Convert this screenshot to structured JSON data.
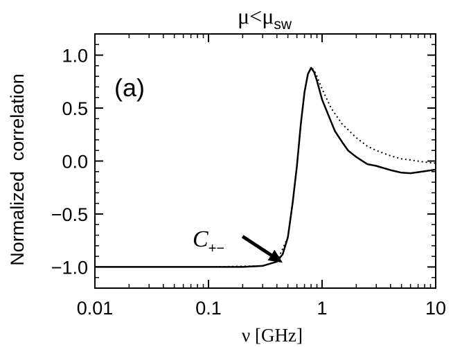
{
  "chart_data": {
    "type": "line",
    "title": {
      "main": "μ<μ",
      "sub": "sw"
    },
    "xlabel": "ν [GHz]",
    "ylabel": "Normalized  correlation",
    "xscale": "log",
    "xlim": [
      0.01,
      10
    ],
    "ylim": [
      -1.2,
      1.2
    ],
    "xticks": [
      {
        "value": 0.01,
        "label": "0.01"
      },
      {
        "value": 0.1,
        "label": "0.1"
      },
      {
        "value": 1,
        "label": "1"
      },
      {
        "value": 10,
        "label": "10"
      }
    ],
    "yticks": [
      {
        "value": 1.0,
        "label": "1.0"
      },
      {
        "value": 0.5,
        "label": "0.5"
      },
      {
        "value": 0.0,
        "label": "0.0"
      },
      {
        "value": -0.5,
        "label": "−0.5"
      },
      {
        "value": -1.0,
        "label": "−1.0"
      }
    ],
    "grid": false,
    "panel_label": "(a)",
    "annotation": {
      "main": "C",
      "sub": "+−",
      "points_to": {
        "x": 0.45,
        "y": -0.96
      }
    },
    "series": [
      {
        "style": "solid",
        "color": "#000000",
        "x": [
          0.01,
          0.05,
          0.1,
          0.2,
          0.3,
          0.4,
          0.45,
          0.5,
          0.55,
          0.6,
          0.65,
          0.7,
          0.75,
          0.8,
          0.85,
          0.9,
          1.0,
          1.1,
          1.2,
          1.3,
          1.5,
          1.7,
          2.0,
          2.5,
          3.0,
          4.0,
          5.0,
          6.0,
          8.0,
          10.0
        ],
        "y": [
          -1.0,
          -1.0,
          -1.0,
          -1.0,
          -0.99,
          -0.95,
          -0.88,
          -0.72,
          -0.4,
          -0.05,
          0.35,
          0.65,
          0.82,
          0.88,
          0.84,
          0.76,
          0.58,
          0.45,
          0.36,
          0.29,
          0.2,
          0.11,
          0.03,
          -0.05,
          -0.06,
          -0.08,
          -0.09,
          -0.1,
          -0.1,
          -0.1
        ]
      },
      {
        "style": "dotted",
        "color": "#000000",
        "x": [
          0.01,
          0.1,
          0.3,
          0.4,
          0.5,
          0.55,
          0.6,
          0.65,
          0.7,
          0.75,
          0.8,
          0.85,
          0.9,
          1.0,
          1.2,
          1.5,
          2.0,
          2.5,
          3.0,
          4.0,
          5.0,
          6.0,
          8.0,
          10.0
        ],
        "y": [
          -1.0,
          -1.0,
          -0.99,
          -0.95,
          -0.72,
          -0.4,
          -0.05,
          0.35,
          0.65,
          0.82,
          0.88,
          0.86,
          0.8,
          0.68,
          0.5,
          0.35,
          0.22,
          0.14,
          0.1,
          0.05,
          0.02,
          0.01,
          -0.01,
          -0.02
        ]
      }
    ]
  }
}
